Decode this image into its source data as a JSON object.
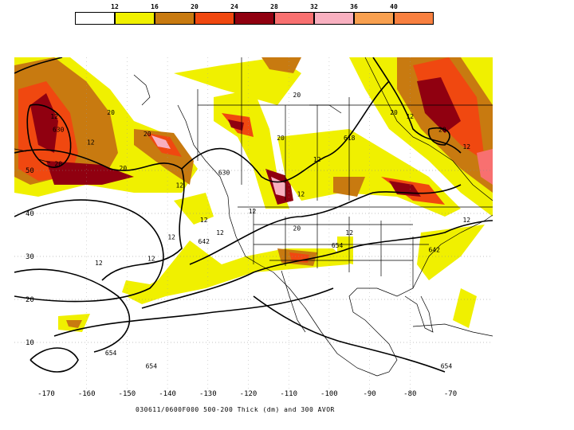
{
  "legend": {
    "ticks": [
      "12",
      "16",
      "20",
      "24",
      "28",
      "32",
      "36",
      "40"
    ],
    "colors": [
      "#ffffff",
      "#f0f000",
      "#c87a10",
      "#f04810",
      "#900010",
      "#f87070",
      "#f8b0c0",
      "#f8a050",
      "#f88040"
    ]
  },
  "map": {
    "lat_labels": [
      "50",
      "40",
      "30",
      "20",
      "10"
    ],
    "lon_labels": [
      "-170",
      "-160",
      "-150",
      "-140",
      "-130",
      "-120",
      "-110",
      "-100",
      "-90",
      "-80",
      "-70"
    ],
    "contour_labels": [
      {
        "text": "630",
        "lat": 59,
        "lon": -167
      },
      {
        "text": "630",
        "lat": 49,
        "lon": -126
      },
      {
        "text": "618",
        "lat": 57,
        "lon": -95
      },
      {
        "text": "642",
        "lat": 33,
        "lon": -131
      },
      {
        "text": "654",
        "lat": 32,
        "lon": -98
      },
      {
        "text": "654",
        "lat": 7,
        "lon": -154
      },
      {
        "text": "654",
        "lat": 4,
        "lon": -144
      },
      {
        "text": "642",
        "lat": 31,
        "lon": -74
      },
      {
        "text": "654",
        "lat": 4,
        "lon": -71
      }
    ],
    "vort_labels": [
      {
        "text": "12",
        "lat": 62,
        "lon": -168
      },
      {
        "text": "12",
        "lat": 56,
        "lon": -159
      },
      {
        "text": "20",
        "lat": 51,
        "lon": -167
      },
      {
        "text": "20",
        "lat": 50,
        "lon": -151
      },
      {
        "text": "20",
        "lat": 63,
        "lon": -154
      },
      {
        "text": "20",
        "lat": 58,
        "lon": -145
      },
      {
        "text": "12",
        "lat": 46,
        "lon": -137
      },
      {
        "text": "20",
        "lat": 57,
        "lon": -112
      },
      {
        "text": "20",
        "lat": 67,
        "lon": -108
      },
      {
        "text": "12",
        "lat": 52,
        "lon": -103
      },
      {
        "text": "12",
        "lat": 44,
        "lon": -107
      },
      {
        "text": "12",
        "lat": 40,
        "lon": -119
      },
      {
        "text": "12",
        "lat": 38,
        "lon": -131
      },
      {
        "text": "12",
        "lat": 34,
        "lon": -139
      },
      {
        "text": "12",
        "lat": 35,
        "lon": -127
      },
      {
        "text": "12",
        "lat": 28,
        "lon": -157
      },
      {
        "text": "12",
        "lat": 29,
        "lon": -144
      },
      {
        "text": "12",
        "lat": 35,
        "lon": -95
      },
      {
        "text": "20",
        "lat": 63,
        "lon": -84
      },
      {
        "text": "12",
        "lat": 62,
        "lon": -80
      },
      {
        "text": "20",
        "lat": 59,
        "lon": -72
      },
      {
        "text": "12",
        "lat": 55,
        "lon": -66
      },
      {
        "text": "12",
        "lat": 38,
        "lon": -66
      },
      {
        "text": "20",
        "lat": 36,
        "lon": -108
      }
    ]
  },
  "caption": "030611/0600F000 500-200 Thick (dm) and 300 AVOR"
}
